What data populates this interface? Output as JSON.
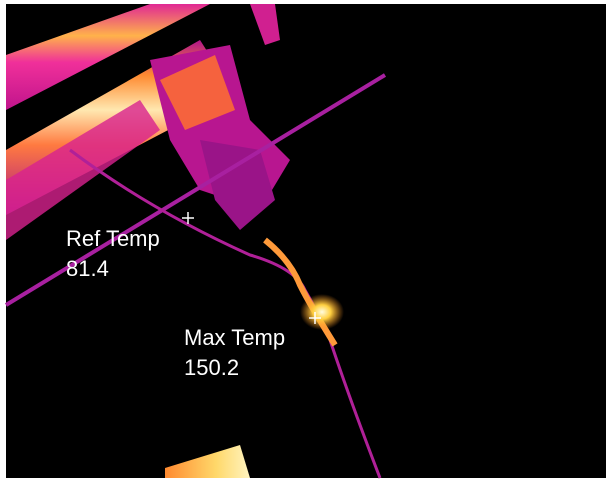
{
  "ref_marker": {
    "label": "Ref Temp",
    "value": 81.4
  },
  "max_marker": {
    "label": "Max Temp",
    "value": 150.2
  }
}
